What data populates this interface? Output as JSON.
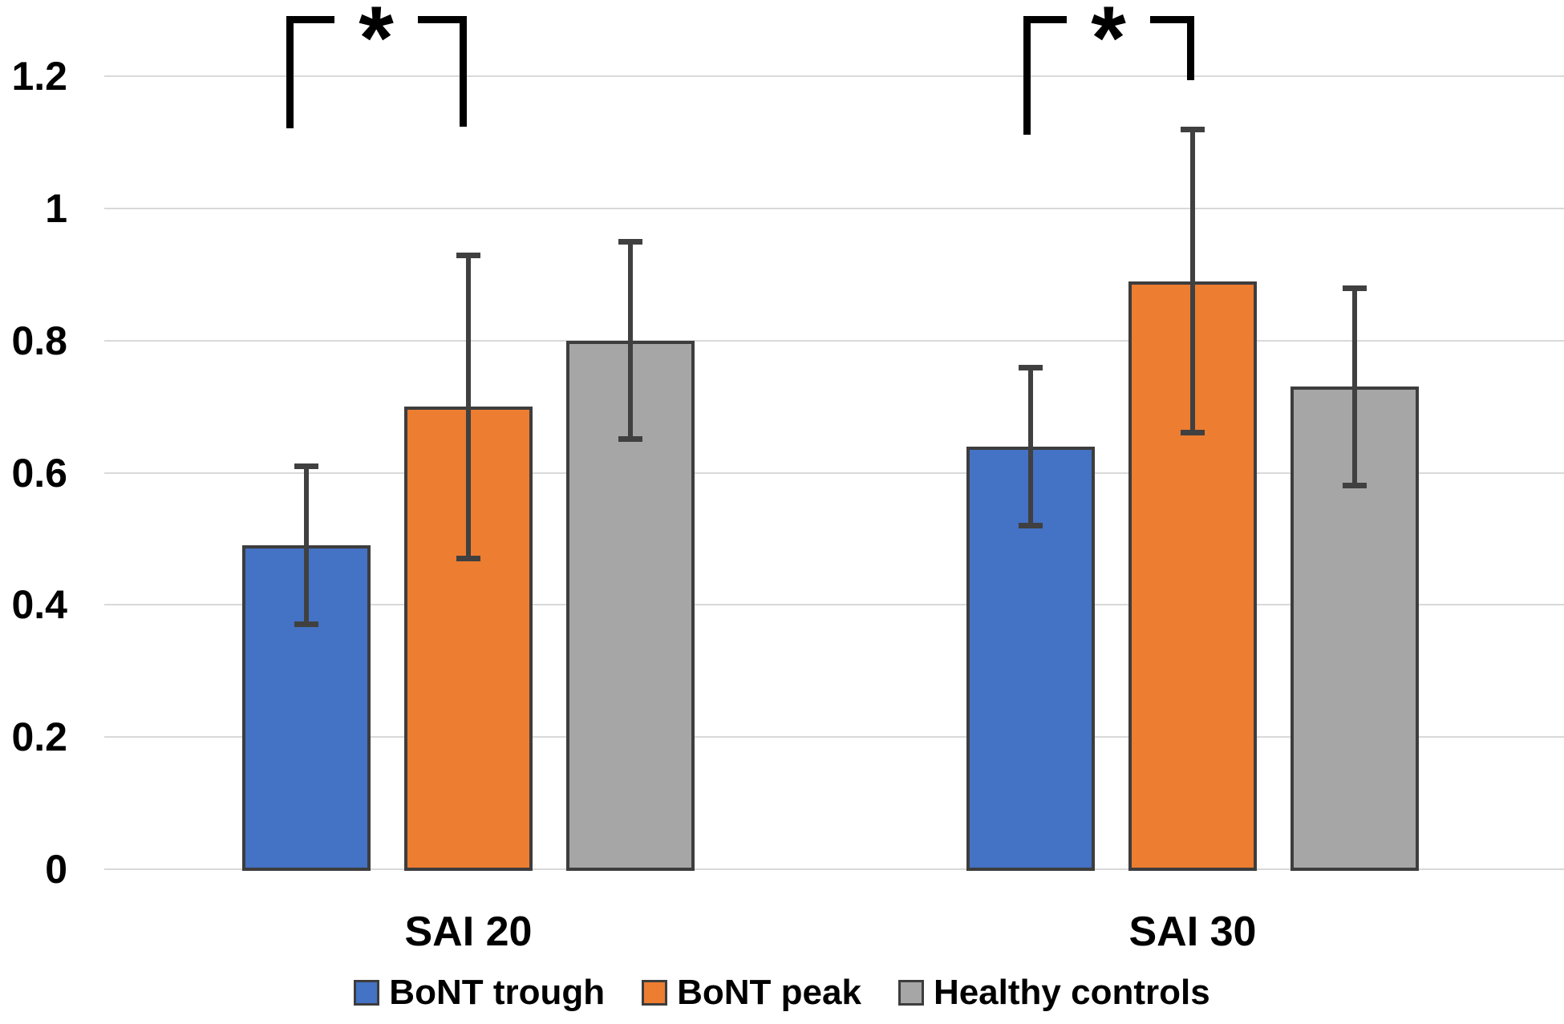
{
  "figure": {
    "kind": "grouped bar chart with error bars and significance brackets",
    "background": "#FFFFFF"
  },
  "chart_data": {
    "type": "bar",
    "title": "",
    "xlabel": "",
    "ylabel": "",
    "categories": [
      "SAI 20",
      "SAI 30"
    ],
    "series": [
      {
        "name": "BoNT trough",
        "color": "#4472C4",
        "values": [
          0.49,
          0.64
        ],
        "error_low": [
          0.37,
          0.52
        ],
        "error_high": [
          0.61,
          0.76
        ]
      },
      {
        "name": "BoNT peak",
        "color": "#ED7D31",
        "values": [
          0.7,
          0.89
        ],
        "error_low": [
          0.47,
          0.66
        ],
        "error_high": [
          0.93,
          1.12
        ]
      },
      {
        "name": "Healthy controls",
        "color": "#A6A6A6",
        "values": [
          0.8,
          0.73
        ],
        "error_low": [
          0.65,
          0.58
        ],
        "error_high": [
          0.95,
          0.88
        ]
      }
    ],
    "y_ticks": [
      {
        "label": "0",
        "value": 0
      },
      {
        "label": "0.2",
        "value": 0.2
      },
      {
        "label": "0.4",
        "value": 0.4
      },
      {
        "label": "0.6",
        "value": 0.6
      },
      {
        "label": "0.8",
        "value": 0.8
      },
      {
        "label": "1",
        "value": 1
      },
      {
        "label": "1.2",
        "value": 1.2
      }
    ],
    "ylim": [
      0,
      1.3
    ],
    "grid": "horizontal",
    "legend_position": "bottom",
    "significance": [
      {
        "category": "SAI 20",
        "between": [
          "BoNT trough",
          "BoNT peak"
        ],
        "label": "*"
      },
      {
        "category": "SAI 30",
        "between": [
          "BoNT trough",
          "BoNT peak"
        ],
        "label": "*"
      }
    ],
    "colors": {
      "gridline": "#D9D9D9",
      "bar_border": "#3D3D3D",
      "error_bar": "#404040",
      "bracket": "#000000",
      "text": "#000000"
    }
  }
}
